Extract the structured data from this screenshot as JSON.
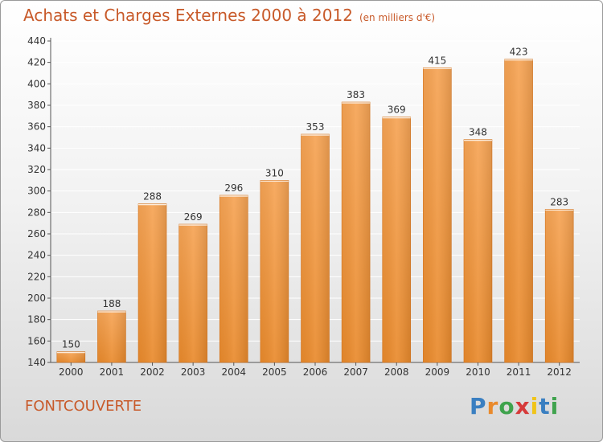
{
  "header": {
    "title": "Achats et Charges Externes 2000 à 2012",
    "subtitle": "(en milliers d'€)"
  },
  "footer": {
    "commune": "FONTCOUVERTE",
    "logo_text": "Proxiti"
  },
  "colors": {
    "bar": "#e98a2c",
    "bar_light": "#f6a455",
    "title": "#c85a2a"
  },
  "chart_data": {
    "type": "bar",
    "title": "Achats et Charges Externes 2000 à 2012",
    "subtitle": "(en milliers d'€)",
    "categories": [
      "2000",
      "2001",
      "2002",
      "2003",
      "2004",
      "2005",
      "2006",
      "2007",
      "2008",
      "2009",
      "2010",
      "2011",
      "2012"
    ],
    "values": [
      150,
      188,
      288,
      269,
      296,
      310,
      353,
      383,
      369,
      415,
      348,
      423,
      283
    ],
    "ylim": [
      140,
      440
    ],
    "yticks": [
      140,
      160,
      180,
      200,
      220,
      240,
      260,
      280,
      300,
      320,
      340,
      360,
      380,
      400,
      420,
      440
    ],
    "grid": true,
    "legend": "none"
  }
}
